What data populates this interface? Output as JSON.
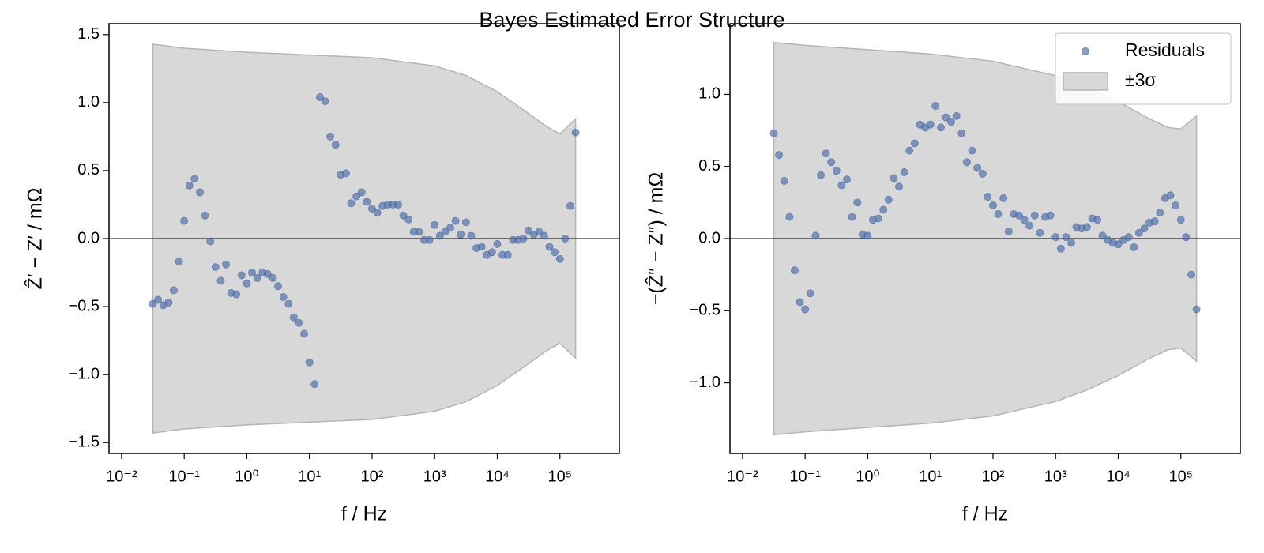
{
  "title": "Bayes Estimated Error Structure",
  "chart_data": [
    {
      "type": "scatter",
      "xscale": "log",
      "xlabel": "f / Hz",
      "ylabel": "Ẑ′ − Z′ / mΩ",
      "xlim": [
        0.0063,
        890000
      ],
      "ylim": [
        -1.58,
        1.58
      ],
      "xticks": [
        {
          "value": 0.01,
          "label": "10⁻²"
        },
        {
          "value": 0.1,
          "label": "10⁻¹"
        },
        {
          "value": 1,
          "label": "10⁰"
        },
        {
          "value": 10,
          "label": "10¹"
        },
        {
          "value": 100,
          "label": "10²"
        },
        {
          "value": 1000,
          "label": "10³"
        },
        {
          "value": 10000,
          "label": "10⁴"
        },
        {
          "value": 100000,
          "label": "10⁵"
        }
      ],
      "yticks": [
        {
          "value": -1.5,
          "label": "−1.5"
        },
        {
          "value": -1,
          "label": "−1.0"
        },
        {
          "value": -0.5,
          "label": "−0.5"
        },
        {
          "value": 0,
          "label": "0.0"
        },
        {
          "value": 0.5,
          "label": "0.5"
        },
        {
          "value": 1,
          "label": "1.0"
        },
        {
          "value": 1.5,
          "label": "1.5"
        }
      ],
      "hline": 0,
      "x": [
        0.0316,
        0.0383,
        0.0464,
        0.0562,
        0.0681,
        0.0825,
        0.1,
        0.121,
        0.147,
        0.178,
        0.215,
        0.261,
        0.316,
        0.383,
        0.464,
        0.562,
        0.681,
        0.825,
        1,
        1.21,
        1.47,
        1.78,
        2.15,
        2.61,
        3.16,
        3.83,
        4.64,
        5.62,
        6.81,
        8.25,
        10,
        12.1,
        14.7,
        17.8,
        21.5,
        26.1,
        31.6,
        38.3,
        46.4,
        56.2,
        68.1,
        82.5,
        100,
        121,
        147,
        178,
        215,
        261,
        316,
        383,
        464,
        562,
        681,
        825,
        1000,
        1210,
        1470,
        1780,
        2150,
        2610,
        3160,
        3830,
        4640,
        5620,
        6810,
        8250,
        10000,
        12100,
        14700,
        17800,
        21500,
        26100,
        31600,
        38300,
        46400,
        56200,
        68100,
        82500,
        100000,
        121000,
        147000,
        178000
      ],
      "series": [
        {
          "color": "#4c6ca8",
          "alpha": 0.65,
          "values": [
            -0.48,
            -0.45,
            -0.49,
            -0.47,
            -0.38,
            -0.17,
            0.13,
            0.39,
            0.44,
            0.34,
            0.17,
            -0.02,
            -0.21,
            -0.31,
            -0.19,
            -0.4,
            -0.41,
            -0.27,
            -0.33,
            -0.25,
            -0.29,
            -0.25,
            -0.26,
            -0.29,
            -0.35,
            -0.43,
            -0.48,
            -0.58,
            -0.62,
            -0.7,
            -0.91,
            -1.07,
            1.04,
            1.01,
            0.75,
            0.69,
            0.47,
            0.48,
            0.26,
            0.31,
            0.34,
            0.27,
            0.22,
            0.19,
            0.24,
            0.25,
            0.25,
            0.25,
            0.17,
            0.14,
            0.05,
            0.05,
            -0.01,
            -0.01,
            0.1,
            0.02,
            0.05,
            0.08,
            0.13,
            0.03,
            0.12,
            0.02,
            -0.07,
            -0.06,
            -0.12,
            -0.1,
            -0.04,
            -0.12,
            -0.12,
            -0.01,
            -0.01,
            0.0,
            0.06,
            0.03,
            0.05,
            0.02,
            -0.06,
            -0.1,
            -0.15,
            0.0,
            0.24,
            0.78
          ]
        }
      ],
      "band": {
        "color": "#d8d8d8",
        "edgecolor": "#b5b5b5",
        "x": [
          0.0316,
          0.1,
          1,
          10,
          100,
          1000,
          3160,
          10000,
          31600,
          63100,
          100000,
          178000
        ],
        "upper": [
          1.43,
          1.4,
          1.37,
          1.35,
          1.33,
          1.27,
          1.2,
          1.08,
          0.92,
          0.82,
          0.77,
          0.88
        ],
        "lower": [
          -1.43,
          -1.4,
          -1.37,
          -1.35,
          -1.33,
          -1.27,
          -1.2,
          -1.08,
          -0.92,
          -0.82,
          -0.77,
          -0.88
        ]
      }
    },
    {
      "type": "scatter",
      "xscale": "log",
      "xlabel": "f / Hz",
      "ylabel": "−(Ẑ″ − Z″) / mΩ",
      "xlim": [
        0.0063,
        890000
      ],
      "ylim": [
        -1.49,
        1.49
      ],
      "xticks": [
        {
          "value": 0.01,
          "label": "10⁻²"
        },
        {
          "value": 0.1,
          "label": "10⁻¹"
        },
        {
          "value": 1,
          "label": "10⁰"
        },
        {
          "value": 10,
          "label": "10¹"
        },
        {
          "value": 100,
          "label": "10²"
        },
        {
          "value": 1000,
          "label": "10³"
        },
        {
          "value": 10000,
          "label": "10⁴"
        },
        {
          "value": 100000,
          "label": "10⁵"
        }
      ],
      "yticks": [
        {
          "value": -1,
          "label": "−1.0"
        },
        {
          "value": -0.5,
          "label": "−0.5"
        },
        {
          "value": 0,
          "label": "0.0"
        },
        {
          "value": 0.5,
          "label": "0.5"
        },
        {
          "value": 1,
          "label": "1.0"
        }
      ],
      "hline": 0,
      "legend": "upper right",
      "x": [
        0.0316,
        0.0383,
        0.0464,
        0.0562,
        0.0681,
        0.0825,
        0.1,
        0.121,
        0.147,
        0.178,
        0.215,
        0.261,
        0.316,
        0.383,
        0.464,
        0.562,
        0.681,
        0.825,
        1,
        1.21,
        1.47,
        1.78,
        2.15,
        2.61,
        3.16,
        3.83,
        4.64,
        5.62,
        6.81,
        8.25,
        10,
        12.1,
        14.7,
        17.8,
        21.5,
        26.1,
        31.6,
        38.3,
        46.4,
        56.2,
        68.1,
        82.5,
        100,
        121,
        147,
        178,
        215,
        261,
        316,
        383,
        464,
        562,
        681,
        825,
        1000,
        1210,
        1470,
        1780,
        2150,
        2610,
        3160,
        3830,
        4640,
        5620,
        6810,
        8250,
        10000,
        12100,
        14700,
        17800,
        21500,
        26100,
        31600,
        38300,
        46400,
        56200,
        68100,
        82500,
        100000,
        121000,
        147000,
        178000
      ],
      "series": [
        {
          "name": "Residuals",
          "color": "#4c6ca8",
          "alpha": 0.65,
          "values": [
            0.73,
            0.58,
            0.4,
            0.15,
            -0.22,
            -0.44,
            -0.49,
            -0.38,
            0.02,
            0.44,
            0.59,
            0.53,
            0.47,
            0.37,
            0.41,
            0.15,
            0.25,
            0.03,
            0.02,
            0.13,
            0.14,
            0.2,
            0.27,
            0.42,
            0.36,
            0.46,
            0.61,
            0.66,
            0.79,
            0.77,
            0.79,
            0.92,
            0.77,
            0.84,
            0.81,
            0.85,
            0.73,
            0.53,
            0.61,
            0.49,
            0.45,
            0.29,
            0.23,
            0.17,
            0.28,
            0.05,
            0.17,
            0.16,
            0.13,
            0.09,
            0.16,
            0.04,
            0.15,
            0.16,
            0.01,
            -0.07,
            0.01,
            -0.03,
            0.08,
            0.07,
            0.08,
            0.14,
            0.13,
            0.02,
            -0.01,
            -0.03,
            -0.04,
            -0.01,
            0.01,
            -0.06,
            0.04,
            0.07,
            0.11,
            0.12,
            0.18,
            0.28,
            0.3,
            0.23,
            0.13,
            0.01,
            -0.25,
            -0.49
          ]
        }
      ],
      "band": {
        "name": "±3σ",
        "color": "#d8d8d8",
        "edgecolor": "#b5b5b5",
        "x": [
          0.0316,
          0.1,
          1,
          10,
          100,
          1000,
          3160,
          10000,
          31600,
          63100,
          100000,
          178000
        ],
        "upper": [
          1.36,
          1.34,
          1.31,
          1.28,
          1.23,
          1.13,
          1.05,
          0.95,
          0.83,
          0.77,
          0.76,
          0.85
        ],
        "lower": [
          -1.36,
          -1.34,
          -1.31,
          -1.28,
          -1.23,
          -1.13,
          -1.05,
          -0.95,
          -0.83,
          -0.77,
          -0.76,
          -0.85
        ]
      }
    }
  ]
}
